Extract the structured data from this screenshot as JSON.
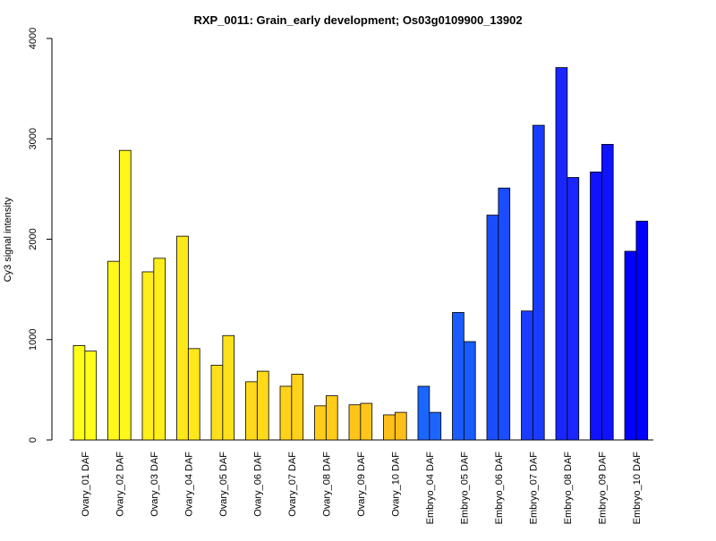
{
  "chart_data": {
    "type": "bar",
    "title": "RXP_0011: Grain_early development; Os03g0109900_13902",
    "xlabel": "",
    "ylabel": "Cy3 signal intensity",
    "ylim": [
      0,
      4000
    ],
    "yticks": [
      0,
      1000,
      2000,
      3000,
      4000
    ],
    "grid": false,
    "bars_per_group": 2,
    "categories": [
      "Ovary_01 DAF",
      "Ovary_02 DAF",
      "Ovary_03 DAF",
      "Ovary_04 DAF",
      "Ovary_05 DAF",
      "Ovary_06 DAF",
      "Ovary_07 DAF",
      "Ovary_08 DAF",
      "Ovary_09 DAF",
      "Ovary_10 DAF",
      "Embryo_04 DAF",
      "Embryo_05 DAF",
      "Embryo_06 DAF",
      "Embryo_07 DAF",
      "Embryo_08 DAF",
      "Embryo_09 DAF",
      "Embryo_10 DAF"
    ],
    "colors": [
      "#ffff1a",
      "#fff71a",
      "#ffee1a",
      "#ffe81a",
      "#ffe01a",
      "#ffd91a",
      "#ffd21a",
      "#ffcc1a",
      "#ffc51a",
      "#ffbf1a",
      "#1a66ff",
      "#1a5cff",
      "#1a4dff",
      "#1a3cff",
      "#1a26ff",
      "#0f13ff",
      "#0000ff"
    ],
    "values": [
      [
        940,
        885
      ],
      [
        1780,
        2885
      ],
      [
        1675,
        1810
      ],
      [
        2030,
        910
      ],
      [
        745,
        1040
      ],
      [
        580,
        685
      ],
      [
        535,
        655
      ],
      [
        340,
        440
      ],
      [
        350,
        365
      ],
      [
        250,
        275
      ],
      [
        535,
        275
      ],
      [
        1270,
        980
      ],
      [
        2240,
        2510
      ],
      [
        1285,
        3135
      ],
      [
        3710,
        2615
      ],
      [
        2670,
        2945
      ],
      [
        1880,
        2180
      ]
    ]
  }
}
